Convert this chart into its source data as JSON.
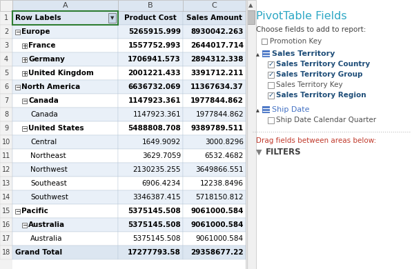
{
  "table_rows": [
    {
      "row": 1,
      "label": "Row Labels",
      "col_b": "Product Cost",
      "col_c": "Sales Amount",
      "is_header": true
    },
    {
      "row": 2,
      "label": "Europe",
      "col_b": "5265915.999",
      "col_c": "8930042.263",
      "level": 0,
      "bold": true,
      "has_minus": true
    },
    {
      "row": 3,
      "label": "France",
      "col_b": "1557752.993",
      "col_c": "2644017.714",
      "level": 1,
      "bold": true,
      "has_plus": true
    },
    {
      "row": 4,
      "label": "Germany",
      "col_b": "1706941.573",
      "col_c": "2894312.338",
      "level": 1,
      "bold": true,
      "has_plus": true
    },
    {
      "row": 5,
      "label": "United Kingdom",
      "col_b": "2001221.433",
      "col_c": "3391712.211",
      "level": 1,
      "bold": true,
      "has_plus": true
    },
    {
      "row": 6,
      "label": "North America",
      "col_b": "6636732.069",
      "col_c": "11367634.37",
      "level": 0,
      "bold": true,
      "has_minus": true
    },
    {
      "row": 7,
      "label": "Canada",
      "col_b": "1147923.361",
      "col_c": "1977844.862",
      "level": 1,
      "bold": true,
      "has_minus": true
    },
    {
      "row": 8,
      "label": "Canada",
      "col_b": "1147923.361",
      "col_c": "1977844.862",
      "level": 2,
      "bold": false
    },
    {
      "row": 9,
      "label": "United States",
      "col_b": "5488808.708",
      "col_c": "9389789.511",
      "level": 1,
      "bold": true,
      "has_minus": true
    },
    {
      "row": 10,
      "label": "Central",
      "col_b": "1649.9092",
      "col_c": "3000.8296",
      "level": 2,
      "bold": false
    },
    {
      "row": 11,
      "label": "Northeast",
      "col_b": "3629.7059",
      "col_c": "6532.4682",
      "level": 2,
      "bold": false
    },
    {
      "row": 12,
      "label": "Northwest",
      "col_b": "2130235.255",
      "col_c": "3649866.551",
      "level": 2,
      "bold": false
    },
    {
      "row": 13,
      "label": "Southeast",
      "col_b": "6906.4234",
      "col_c": "12238.8496",
      "level": 2,
      "bold": false
    },
    {
      "row": 14,
      "label": "Southwest",
      "col_b": "3346387.415",
      "col_c": "5718150.812",
      "level": 2,
      "bold": false
    },
    {
      "row": 15,
      "label": "Pacific",
      "col_b": "5375145.508",
      "col_c": "9061000.584",
      "level": 0,
      "bold": true,
      "has_minus": true
    },
    {
      "row": 16,
      "label": "Australia",
      "col_b": "5375145.508",
      "col_c": "9061000.584",
      "level": 1,
      "bold": true,
      "has_minus": true
    },
    {
      "row": 17,
      "label": "Australia",
      "col_b": "5375145.508",
      "col_c": "9061000.584",
      "level": 2,
      "bold": false
    },
    {
      "row": 18,
      "label": "Grand Total",
      "col_b": "17277793.58",
      "col_c": "29358677.22",
      "level": 0,
      "bold": true,
      "is_grand_total": true
    }
  ],
  "header_bg": "#dce6f1",
  "alt_row_bg": "#e9f0f8",
  "normal_row_bg": "#ffffff",
  "grand_total_bg": "#dce6f1",
  "header_border_color": "#2e7d32",
  "grid_color": "#b0c4d8",
  "col_header_bg": "#dce6f1",
  "pivot_title_color": "#2ea8c5",
  "pivot_section_color": "#1f4e79",
  "checked_color": "#1f4e79",
  "filter_color": "#c0392b",
  "sub_items": [
    [
      "Sales Territory Country",
      true
    ],
    [
      "Sales Territory Group",
      true
    ],
    [
      "Sales Territory Key",
      false
    ],
    [
      "Sales Territory Region",
      true
    ]
  ],
  "pivot_title": "PivotTable Fields",
  "choose_label": "Choose fields to add to report:",
  "promotion_key_label": "Promotion Key",
  "sales_territory_label": "Sales Territory",
  "ship_date_label": "Ship Date",
  "ship_date_sub": "Ship Date Calendar Quarter",
  "drag_label": "Drag fields between areas below:",
  "filters_label": "FILTERS"
}
